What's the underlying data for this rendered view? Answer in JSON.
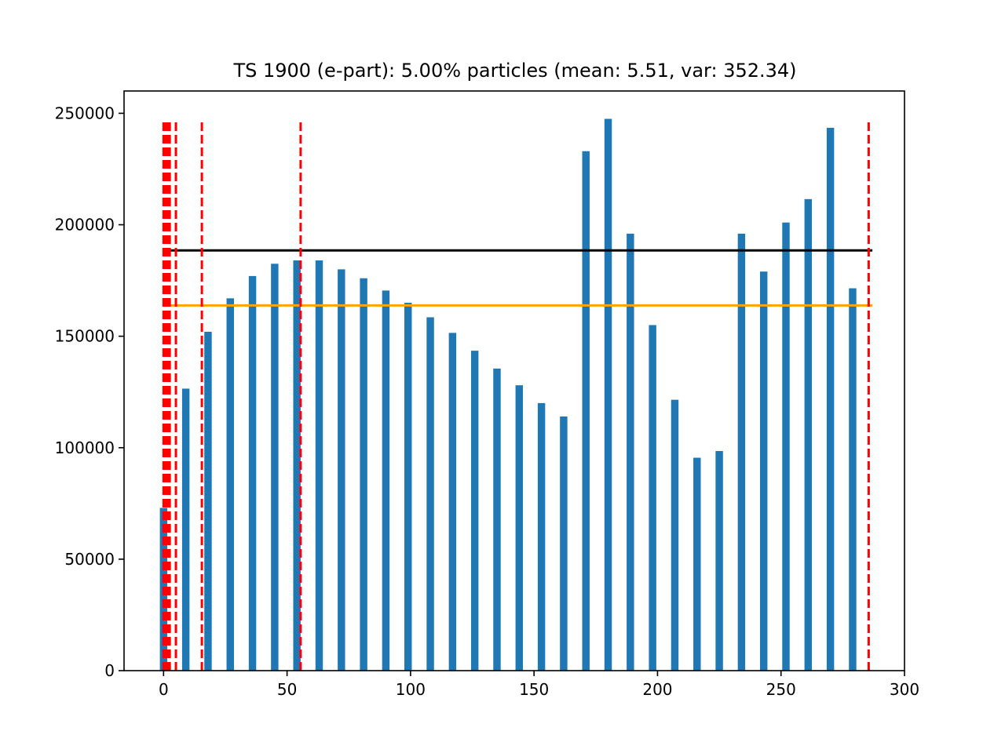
{
  "chart_data": {
    "type": "bar",
    "title": "TS 1900 (e-part): 5.00% particles (mean: 5.51, var: 352.34)",
    "xlabel": "",
    "ylabel": "",
    "xlim": [
      -16,
      300
    ],
    "ylim": [
      0,
      260000
    ],
    "xticks": [
      0,
      50,
      100,
      150,
      200,
      250,
      300
    ],
    "yticks": [
      0,
      50000,
      100000,
      150000,
      200000,
      250000
    ],
    "bar_color": "#1f77b4",
    "bar_width": 3,
    "bars": {
      "x": [
        0,
        9,
        18,
        27,
        36,
        45,
        54,
        63,
        72,
        81,
        90,
        99,
        108,
        117,
        126,
        135,
        144,
        153,
        162,
        171,
        180,
        189,
        198,
        207,
        216,
        225,
        234,
        243,
        252,
        261,
        270,
        279
      ],
      "values": [
        73000,
        126500,
        152000,
        167000,
        177000,
        182500,
        184000,
        184000,
        180000,
        176000,
        170500,
        165000,
        158500,
        151500,
        143500,
        135500,
        128000,
        120000,
        114000,
        233000,
        247500,
        196000,
        155000,
        121500,
        95500,
        98500,
        196000,
        179000,
        201000,
        211500,
        243500,
        171500
      ]
    },
    "hlines": [
      {
        "y": 188500,
        "x_range": [
          0,
          287
        ],
        "color": "#000000"
      },
      {
        "y": 163800,
        "x_range": [
          0,
          287
        ],
        "color": "#ffa500"
      }
    ],
    "vlines": {
      "x": [
        0,
        0.5,
        1,
        1.5,
        2,
        2.5,
        5,
        15.5,
        55.5,
        285.5
      ],
      "y_range": [
        0,
        246000
      ],
      "color": "#ff0000",
      "style": "dashed"
    }
  }
}
